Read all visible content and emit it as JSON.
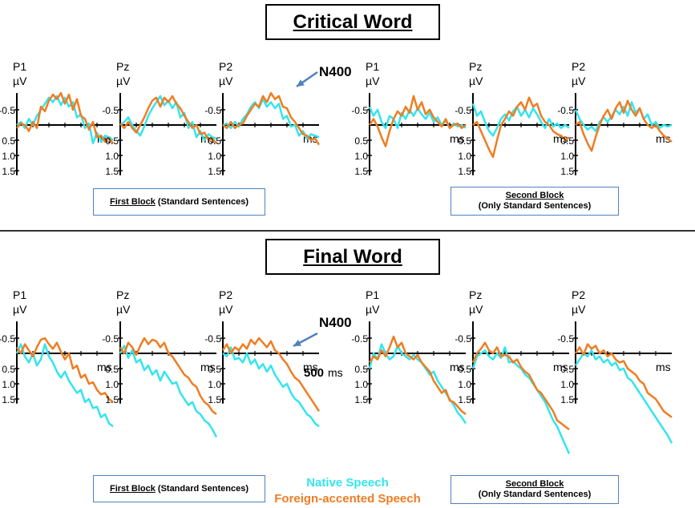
{
  "colors": {
    "native": "#33e5ee",
    "foreign": "#ef7d22",
    "axis": "#000000",
    "box_border": "#4f81bd",
    "arrow": "#4f81bd"
  },
  "sections": [
    {
      "title": "Critical Word",
      "block1": {
        "main": "First Block",
        "sub": "(Standard Sentences)"
      },
      "block2": {
        "line1": "Second Block",
        "line2": "(Only Standard Sentences)"
      },
      "annotation": "N400"
    },
    {
      "title": "Final Word",
      "block1": {
        "main": "First Block",
        "sub": "(Standard Sentences)"
      },
      "block2": {
        "line1": "Second Block",
        "line2": "(Only Standard Sentences)"
      },
      "annotation": "N400",
      "time_label": "500"
    }
  ],
  "legend": {
    "native": "Native Speech",
    "foreign": "Foreign-accented Speech"
  },
  "chart_data": {
    "type": "line",
    "y_unit": "µV",
    "x_unit": "ms",
    "y_ticks": [
      -0.5,
      0.5,
      1.0,
      1.5
    ],
    "y_tick_labels": [
      "-0.5",
      "0.5",
      "1.0",
      "1.5"
    ],
    "ylim": [
      -1.0,
      1.9
    ],
    "xlim": [
      0,
      600
    ],
    "y_inverted": true,
    "series_names": [
      "Native Speech",
      "Foreign-accented Speech"
    ],
    "x": [
      0,
      25,
      50,
      75,
      100,
      125,
      150,
      175,
      200,
      225,
      250,
      275,
      300,
      325,
      350,
      375,
      400,
      425,
      450,
      475,
      500,
      525,
      550,
      575,
      600
    ],
    "panels": [
      {
        "section": "Critical Word",
        "block": "First Block",
        "electrode": "P1",
        "native": [
          0.0,
          -0.1,
          0.1,
          -0.2,
          0.0,
          -0.3,
          -0.5,
          -0.7,
          -0.9,
          -0.75,
          -0.95,
          -0.65,
          -0.9,
          -0.6,
          -0.75,
          -0.25,
          -0.35,
          0.1,
          -0.05,
          0.6,
          0.25,
          0.55,
          0.35,
          0.4,
          0.5
        ],
        "foreign": [
          0.1,
          -0.05,
          0.0,
          0.2,
          -0.1,
          0.1,
          -0.6,
          -0.45,
          -0.8,
          -1.0,
          -0.85,
          -1.05,
          -0.7,
          -1.0,
          -0.5,
          -0.85,
          -0.3,
          -0.2,
          0.15,
          -0.1,
          0.4,
          0.35,
          0.55,
          0.45,
          0.6
        ]
      },
      {
        "section": "Critical Word",
        "block": "First Block",
        "electrode": "Pz",
        "native": [
          0.0,
          -0.1,
          -0.25,
          0.0,
          0.2,
          0.35,
          0.05,
          -0.3,
          -0.55,
          -0.75,
          -0.95,
          -0.65,
          -0.8,
          -0.55,
          -0.75,
          -0.25,
          -0.4,
          0.1,
          -0.1,
          0.4,
          0.2,
          0.5,
          0.3,
          0.4,
          0.45
        ],
        "foreign": [
          -0.05,
          0.1,
          -0.1,
          0.1,
          0.25,
          0.0,
          -0.25,
          -0.55,
          -0.8,
          -0.9,
          -0.6,
          -0.9,
          -0.75,
          -0.95,
          -0.7,
          -0.55,
          -0.3,
          -0.1,
          0.1,
          0.0,
          0.3,
          0.25,
          0.5,
          0.45,
          0.6
        ]
      },
      {
        "section": "Critical Word",
        "block": "First Block",
        "electrode": "P2",
        "native": [
          0.0,
          -0.05,
          0.1,
          -0.1,
          0.05,
          -0.2,
          -0.35,
          -0.6,
          -0.75,
          -0.55,
          -0.85,
          -0.6,
          -0.75,
          -0.55,
          -0.7,
          -0.2,
          -0.3,
          0.05,
          0.0,
          0.35,
          0.2,
          0.45,
          0.3,
          0.35,
          0.4
        ],
        "foreign": [
          0.0,
          0.1,
          -0.1,
          0.1,
          0.0,
          -0.05,
          -0.3,
          -0.5,
          -0.7,
          -0.6,
          -0.95,
          -0.75,
          -1.05,
          -0.85,
          -0.95,
          -0.6,
          -0.55,
          -0.25,
          -0.1,
          0.1,
          0.3,
          0.35,
          0.5,
          0.45,
          0.65
        ]
      },
      {
        "section": "Critical Word",
        "block": "Second Block",
        "electrode": "P1",
        "native": [
          -0.6,
          -0.3,
          -0.5,
          -0.1,
          0.1,
          -0.3,
          -0.2,
          0.1,
          -0.4,
          -0.2,
          -0.5,
          -0.3,
          -0.55,
          -0.35,
          -0.2,
          -0.4,
          -0.1,
          -0.25,
          0.0,
          -0.15,
          0.1,
          -0.05,
          0.05,
          0.0,
          0.1
        ],
        "foreign": [
          0.0,
          -0.2,
          0.05,
          0.4,
          0.7,
          0.2,
          -0.2,
          -0.45,
          -0.3,
          -0.6,
          -0.4,
          -0.95,
          -0.5,
          -0.75,
          -0.35,
          -0.5,
          -0.25,
          -0.1,
          0.05,
          -0.2,
          0.1,
          0.0,
          -0.05,
          0.1,
          0.0
        ]
      },
      {
        "section": "Critical Word",
        "block": "Second Block",
        "electrode": "Pz",
        "native": [
          -0.7,
          -0.3,
          -0.45,
          -0.1,
          0.2,
          0.35,
          0.1,
          -0.2,
          -0.35,
          -0.15,
          -0.45,
          -0.6,
          -0.3,
          -0.5,
          -0.25,
          -0.55,
          -0.35,
          -0.1,
          0.1,
          -0.2,
          0.05,
          -0.05,
          0.1,
          0.0,
          0.1
        ],
        "foreign": [
          0.0,
          -0.1,
          0.2,
          0.5,
          0.8,
          1.05,
          0.5,
          0.0,
          -0.2,
          -0.45,
          -0.3,
          -0.6,
          -0.75,
          -0.5,
          -0.9,
          -0.6,
          -0.7,
          -0.3,
          -0.1,
          0.0,
          0.2,
          0.3,
          0.35,
          0.5,
          0.4
        ]
      },
      {
        "section": "Critical Word",
        "block": "Second Block",
        "electrode": "P2",
        "native": [
          -0.5,
          -0.2,
          0.0,
          0.15,
          0.05,
          0.2,
          -0.1,
          -0.25,
          -0.1,
          -0.3,
          -0.5,
          -0.35,
          -0.6,
          -0.3,
          -0.75,
          -0.4,
          -0.55,
          -0.2,
          -0.35,
          0.0,
          -0.1,
          0.1,
          0.0,
          0.05,
          0.0
        ],
        "foreign": [
          0.0,
          -0.1,
          0.3,
          0.6,
          0.85,
          0.4,
          0.0,
          -0.3,
          -0.5,
          -0.2,
          -0.55,
          -0.75,
          -0.4,
          -0.8,
          -0.5,
          -0.3,
          -0.55,
          -0.2,
          0.0,
          0.1,
          0.0,
          0.2,
          0.35,
          0.45,
          0.55
        ]
      },
      {
        "section": "Final Word",
        "block": "First Block",
        "electrode": "P1",
        "native": [
          0.0,
          -0.3,
          0.1,
          0.3,
          0.0,
          0.4,
          0.2,
          -0.3,
          0.1,
          0.3,
          0.6,
          0.8,
          0.6,
          0.9,
          1.1,
          1.3,
          1.2,
          1.6,
          1.5,
          1.8,
          1.75,
          2.1,
          2.0,
          2.3,
          2.4
        ],
        "foreign": [
          -0.2,
          0.0,
          -0.3,
          -0.1,
          0.1,
          -0.2,
          -0.45,
          -0.5,
          -0.3,
          -0.15,
          -0.35,
          -0.05,
          0.2,
          0.0,
          0.5,
          0.4,
          0.8,
          0.7,
          1.0,
          0.95,
          1.2,
          1.35,
          1.3,
          1.5,
          1.6
        ]
      },
      {
        "section": "Final Word",
        "block": "First Block",
        "electrode": "Pz",
        "native": [
          0.0,
          -0.25,
          0.15,
          -0.1,
          0.3,
          0.2,
          0.55,
          0.4,
          0.7,
          0.55,
          0.9,
          0.6,
          0.8,
          1.0,
          0.95,
          1.3,
          1.5,
          1.7,
          1.6,
          1.9,
          2.0,
          2.2,
          2.3,
          2.5,
          2.75
        ],
        "foreign": [
          -0.2,
          0.0,
          -0.35,
          -0.2,
          0.05,
          -0.25,
          -0.5,
          -0.3,
          -0.45,
          -0.4,
          -0.2,
          -0.35,
          0.0,
          0.1,
          0.3,
          0.5,
          0.7,
          0.8,
          1.0,
          1.1,
          1.4,
          1.6,
          1.7,
          1.9,
          2.0
        ]
      },
      {
        "section": "Final Word",
        "block": "First Block",
        "electrode": "P2",
        "native": [
          0.0,
          0.1,
          -0.2,
          0.2,
          0.15,
          0.3,
          0.0,
          0.35,
          0.2,
          0.5,
          0.35,
          0.6,
          0.4,
          0.7,
          0.9,
          1.1,
          1.0,
          1.3,
          1.5,
          1.6,
          1.8,
          2.0,
          2.1,
          2.3,
          2.4
        ],
        "foreign": [
          -0.1,
          -0.3,
          0.0,
          -0.2,
          -0.1,
          -0.3,
          -0.15,
          -0.45,
          -0.3,
          -0.5,
          -0.35,
          -0.2,
          -0.4,
          -0.1,
          0.0,
          0.2,
          0.35,
          0.6,
          0.8,
          0.9,
          1.1,
          1.3,
          1.5,
          1.7,
          1.9
        ]
      },
      {
        "section": "Final Word",
        "block": "Second Block",
        "electrode": "P1",
        "native": [
          0.5,
          0.0,
          0.2,
          -0.3,
          0.0,
          0.2,
          0.1,
          -0.25,
          0.0,
          0.1,
          0.2,
          0.05,
          0.2,
          0.3,
          0.5,
          0.7,
          0.6,
          0.9,
          1.1,
          1.3,
          1.5,
          1.7,
          1.95,
          2.1,
          2.3
        ],
        "foreign": [
          0.3,
          0.1,
          0.2,
          -0.1,
          0.1,
          -0.2,
          -0.55,
          -0.2,
          -0.35,
          0.0,
          0.1,
          0.2,
          0.05,
          0.3,
          0.45,
          0.6,
          0.9,
          1.1,
          1.3,
          1.2,
          1.55,
          1.6,
          1.75,
          1.9,
          2.0
        ]
      },
      {
        "section": "Final Word",
        "block": "Second Block",
        "electrode": "Pz",
        "native": [
          0.5,
          0.1,
          0.0,
          -0.1,
          0.1,
          0.2,
          0.0,
          0.15,
          -0.2,
          0.3,
          0.25,
          0.4,
          0.5,
          0.7,
          0.8,
          1.0,
          1.2,
          1.4,
          1.6,
          1.9,
          2.2,
          2.4,
          2.7,
          3.0,
          3.3
        ],
        "foreign": [
          0.3,
          0.0,
          -0.15,
          -0.35,
          -0.1,
          0.0,
          -0.2,
          0.1,
          0.05,
          0.1,
          0.3,
          0.2,
          0.45,
          0.6,
          0.7,
          0.95,
          1.2,
          1.3,
          1.5,
          1.7,
          1.9,
          2.2,
          2.3,
          2.4,
          2.5
        ]
      },
      {
        "section": "Final Word",
        "block": "Second Block",
        "electrode": "P2",
        "native": [
          0.4,
          0.2,
          0.0,
          0.1,
          -0.1,
          0.2,
          0.1,
          0.3,
          0.2,
          0.4,
          0.3,
          0.55,
          0.5,
          0.8,
          0.9,
          1.1,
          1.3,
          1.5,
          1.7,
          1.9,
          2.1,
          2.3,
          2.5,
          2.7,
          2.95
        ],
        "foreign": [
          0.0,
          -0.2,
          0.05,
          -0.3,
          -0.15,
          -0.25,
          0.0,
          -0.1,
          0.1,
          0.0,
          0.2,
          0.3,
          0.25,
          0.5,
          0.6,
          0.7,
          0.9,
          1.0,
          1.3,
          1.4,
          1.5,
          1.7,
          1.9,
          2.0,
          2.1
        ]
      }
    ]
  }
}
